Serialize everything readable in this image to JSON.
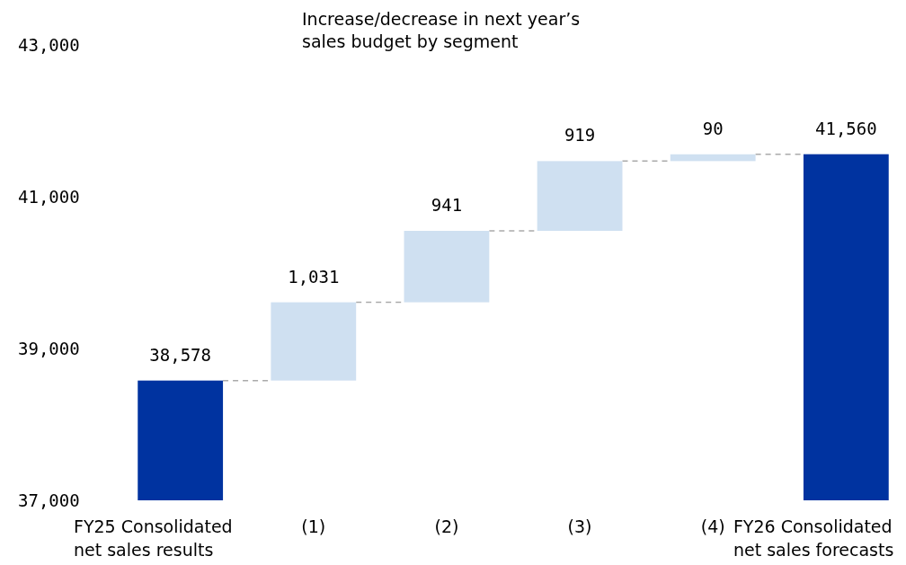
{
  "chart_data": {
    "type": "bar",
    "title": "Increase/decrease in next year’s sales budget by segment",
    "categories": [
      "FY25 Consolidated net sales results",
      "(1)",
      "(2)",
      "(3)",
      "(4)",
      "FY26 Consolidated net sales forecasts"
    ],
    "values": [
      38578,
      1031,
      941,
      919,
      90,
      41560
    ],
    "base": [
      null,
      38578,
      39609,
      40550,
      41469,
      null
    ],
    "colors": [
      "#0033a0",
      "#cfe0f1",
      "#cfe0f1",
      "#cfe0f1",
      "#cfe0f1",
      "#0033a0"
    ],
    "value_labels": [
      "38,578",
      "1,031",
      "941",
      "919",
      "90",
      "41,560"
    ],
    "ylim": [
      37000,
      43000
    ],
    "yticks": [
      {
        "value": 37000,
        "label": "37,000"
      },
      {
        "value": 39000,
        "label": "39,000"
      },
      {
        "value": 41000,
        "label": "41,000"
      },
      {
        "value": 43000,
        "label": "43,000"
      }
    ]
  }
}
